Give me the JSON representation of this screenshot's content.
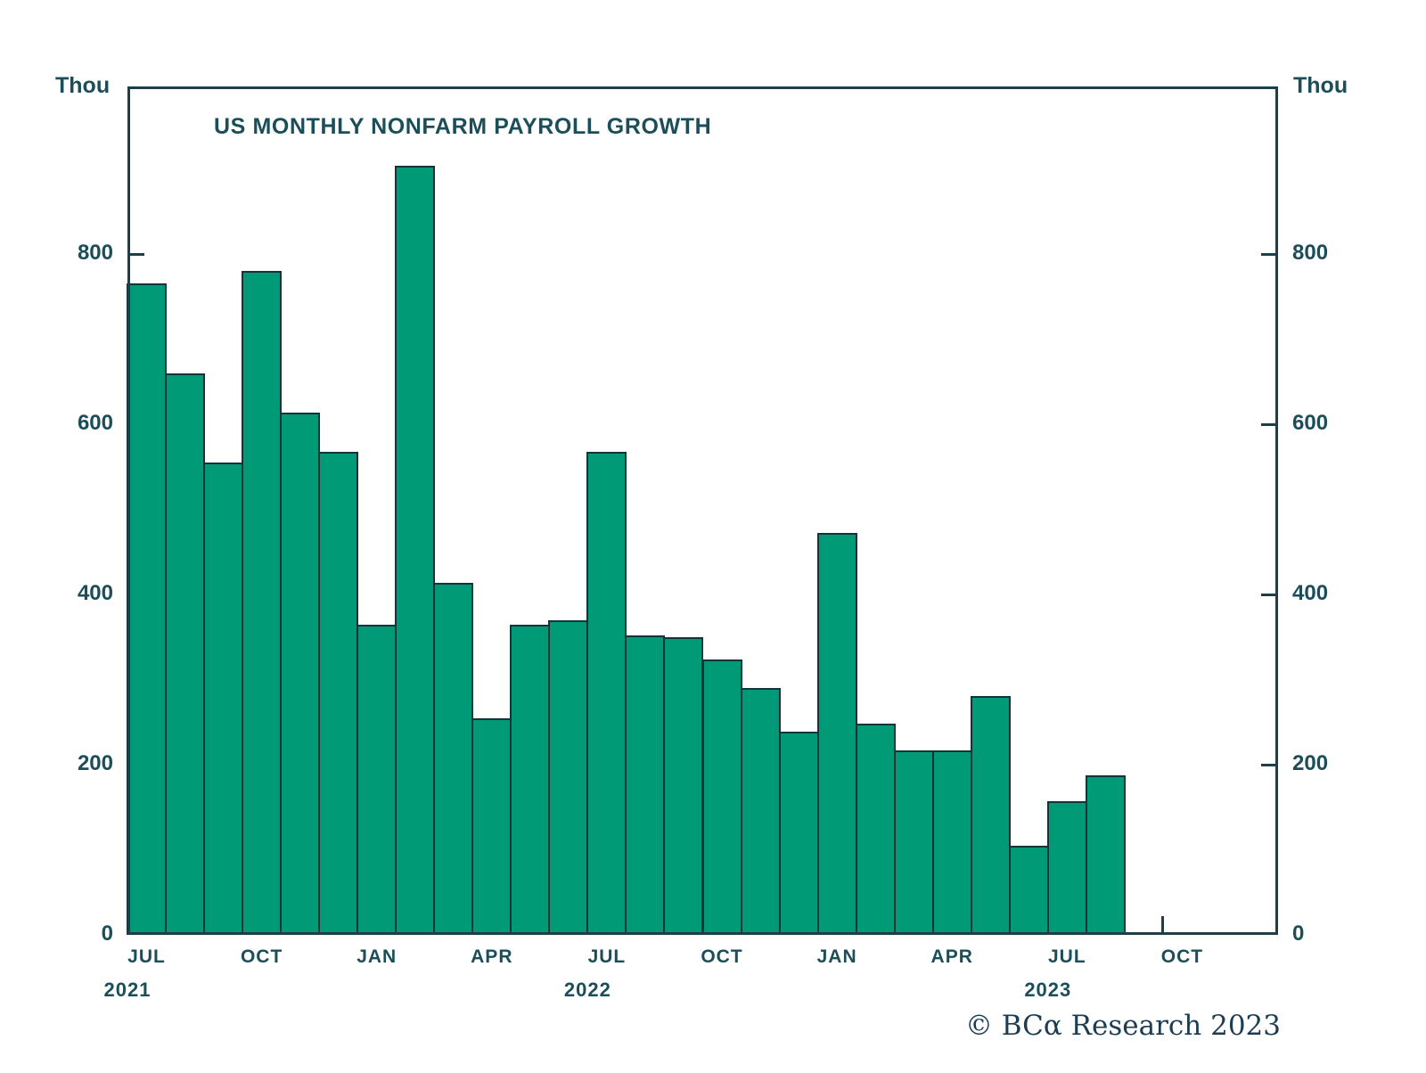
{
  "title": "US MONTHLY NONFARM PAYROLL GROWTH",
  "axis": {
    "unit_label_left": "Thou",
    "unit_label_right": "Thou",
    "y_ticks": [
      800,
      600,
      400,
      200,
      0
    ],
    "x_quarter_labels": [
      "JUL",
      "OCT",
      "JAN",
      "APR",
      "JUL",
      "OCT",
      "JAN",
      "APR",
      "JUL",
      "OCT"
    ],
    "x_year_labels": [
      "2021",
      "2022",
      "2023"
    ]
  },
  "footer": {
    "copyright": "© BCα Research 2023"
  },
  "colors": {
    "bar_fill": "#019a77",
    "bar_outline": "#15333a",
    "frame": "#1c4049",
    "text": "#1c4e59",
    "copyright_text": "#1c3d51"
  },
  "chart_data": {
    "type": "bar",
    "title": "US MONTHLY NONFARM PAYROLL GROWTH",
    "unit": "Thousands (Thou)",
    "categories": [
      "Jul 2021",
      "Aug 2021",
      "Sep 2021",
      "Oct 2021",
      "Nov 2021",
      "Dec 2021",
      "Jan 2022",
      "Feb 2022",
      "Mar 2022",
      "Apr 2022",
      "May 2022",
      "Jun 2022",
      "Jul 2022",
      "Aug 2022",
      "Sep 2022",
      "Oct 2022",
      "Nov 2022",
      "Dec 2022",
      "Jan 2023",
      "Feb 2023",
      "Mar 2023",
      "Apr 2023",
      "May 2023",
      "Jun 2023",
      "Jul 2023",
      "Aug 2023"
    ],
    "values": [
      765,
      660,
      555,
      780,
      614,
      568,
      364,
      904,
      414,
      254,
      364,
      370,
      568,
      352,
      350,
      324,
      290,
      239,
      472,
      248,
      217,
      217,
      281,
      105,
      157,
      187
    ],
    "xlabel": "",
    "ylabel": "Thou",
    "ylim": [
      0,
      1000
    ],
    "y_tick_step": 200,
    "x_axis_extends_to": "Dec 2023",
    "x_tick_labels": [
      "JUL 2021",
      "OCT 2021",
      "JAN 2022",
      "APR 2022",
      "JUL 2022",
      "OCT 2022",
      "JAN 2023",
      "APR 2023",
      "JUL 2023",
      "OCT 2023"
    ],
    "grid": false,
    "legend_position": "none"
  }
}
